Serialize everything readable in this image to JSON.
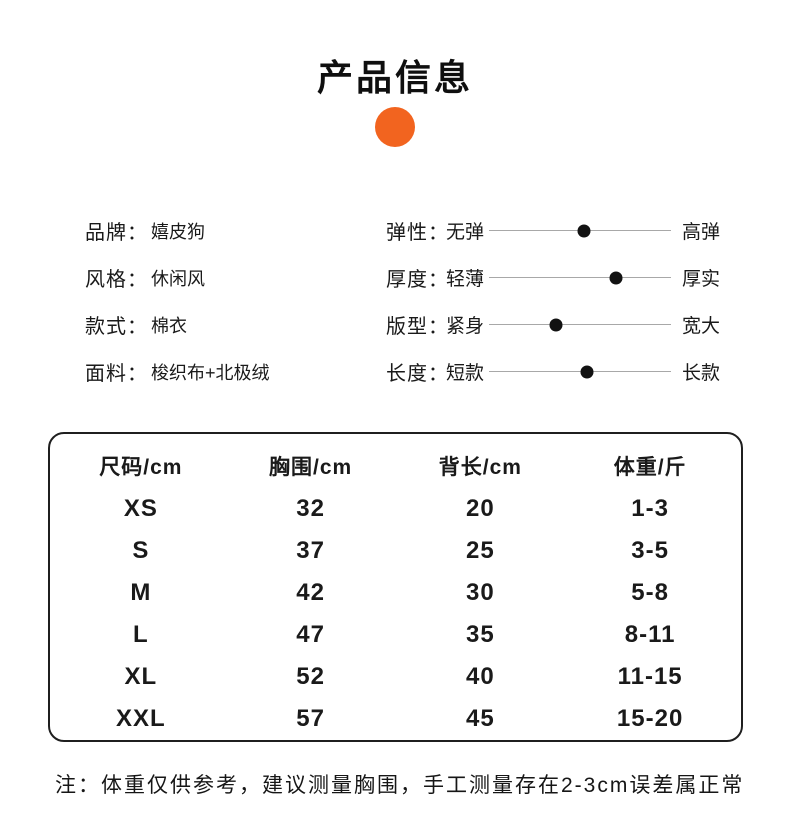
{
  "title": "产品信息",
  "accent_color": "#f2641f",
  "product_attrs": [
    {
      "label": "品牌：",
      "value": "嬉皮狗"
    },
    {
      "label": "风格：",
      "value": "休闲风"
    },
    {
      "label": "款式：",
      "value": "棉衣"
    },
    {
      "label": "面料：",
      "value": "梭织布+北极绒"
    }
  ],
  "sliders": [
    {
      "label": "弹性：",
      "min": "无弹",
      "max": "高弹",
      "percent": 52
    },
    {
      "label": "厚度：",
      "min": "轻薄",
      "max": "厚实",
      "percent": 70
    },
    {
      "label": "版型：",
      "min": "紧身",
      "max": "宽大",
      "percent": 37
    },
    {
      "label": "长度：",
      "min": "短款",
      "max": "长款",
      "percent": 54
    }
  ],
  "size_table": {
    "headers": [
      "尺码/cm",
      "胸围/cm",
      "背长/cm",
      "体重/斤"
    ],
    "rows": [
      [
        "XS",
        "32",
        "20",
        "1-3"
      ],
      [
        "S",
        "37",
        "25",
        "3-5"
      ],
      [
        "M",
        "42",
        "30",
        "5-8"
      ],
      [
        "L",
        "47",
        "35",
        "8-11"
      ],
      [
        "XL",
        "52",
        "40",
        "11-15"
      ],
      [
        "XXL",
        "57",
        "45",
        "15-20"
      ]
    ]
  },
  "note": "注：体重仅供参考，建议测量胸围，手工测量存在2-3cm误差属正常"
}
